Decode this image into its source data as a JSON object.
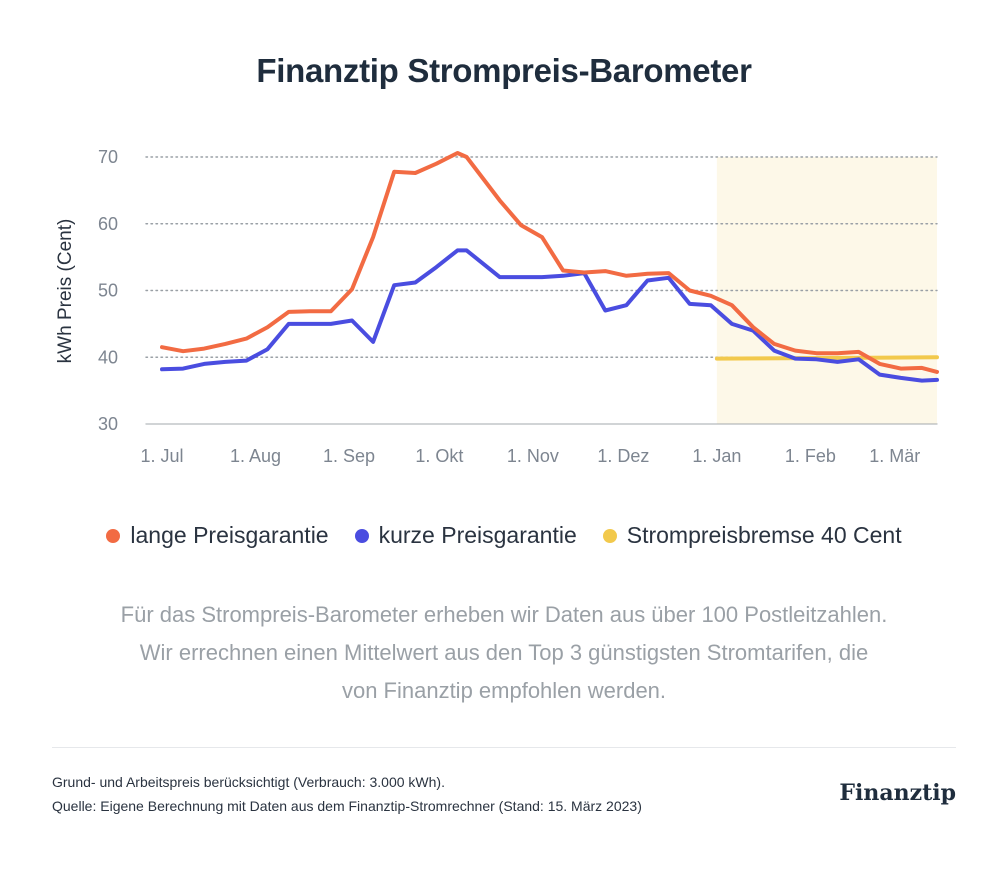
{
  "title": "Finanztip Strompreis-Barometer",
  "chart_data": {
    "type": "line",
    "ylabel": "kWh Preis (Cent)",
    "xlabel": "",
    "ylim": [
      30,
      70
    ],
    "yticks": [
      30,
      40,
      50,
      60,
      70
    ],
    "x_ticks": [
      "1. Jul",
      "1. Aug",
      "1. Sep",
      "1. Okt",
      "1. Nov",
      "1. Dez",
      "1. Jan",
      "1. Feb",
      "1. Mär"
    ],
    "x_days": [
      0,
      31,
      62,
      92,
      123,
      153,
      184,
      215,
      243
    ],
    "x_domain": [
      0,
      257
    ],
    "grid": "horizontal-dotted",
    "legend_position": "bottom",
    "highlight_region": [
      184,
      257
    ],
    "series": [
      {
        "name": "lange Preisgarantie",
        "color": "#f26b43",
        "x": [
          0,
          7,
          14,
          21,
          28,
          35,
          42,
          49,
          56,
          63,
          70,
          77,
          84,
          91,
          98,
          101,
          112,
          119,
          126,
          133,
          140,
          147,
          154,
          161,
          168,
          175,
          182,
          189,
          196,
          203,
          210,
          217,
          224,
          231,
          238,
          245,
          252,
          257
        ],
        "y": [
          41.5,
          40.9,
          41.3,
          42.0,
          42.8,
          44.5,
          46.8,
          46.9,
          46.9,
          50.2,
          58.0,
          67.8,
          67.6,
          69.0,
          70.6,
          70.0,
          63.5,
          59.8,
          58.0,
          53.0,
          52.7,
          52.9,
          52.2,
          52.5,
          52.6,
          50.0,
          49.2,
          47.8,
          44.5,
          42.0,
          41.0,
          40.6,
          40.6,
          40.8,
          39.0,
          38.3,
          38.4,
          37.8
        ]
      },
      {
        "name": "kurze Preisgarantie",
        "color": "#4a4de0",
        "x": [
          0,
          7,
          14,
          21,
          28,
          35,
          42,
          49,
          56,
          63,
          70,
          77,
          84,
          91,
          98,
          101,
          112,
          119,
          126,
          133,
          140,
          147,
          154,
          161,
          168,
          175,
          182,
          189,
          196,
          203,
          210,
          217,
          224,
          231,
          238,
          245,
          252,
          257
        ],
        "y": [
          38.2,
          38.3,
          39.0,
          39.3,
          39.5,
          41.2,
          45.0,
          45.0,
          45.0,
          45.5,
          42.3,
          50.8,
          51.2,
          53.5,
          56.0,
          56.0,
          52.0,
          52.0,
          52.0,
          52.2,
          52.6,
          47.0,
          47.8,
          51.5,
          51.9,
          48.0,
          47.8,
          45.0,
          44.0,
          41.0,
          39.8,
          39.7,
          39.3,
          39.7,
          37.4,
          36.9,
          36.5,
          36.6
        ]
      },
      {
        "name": "Strompreisbremse 40 Cent",
        "color": "#f2c94c",
        "x": [
          184,
          257
        ],
        "y": [
          39.8,
          40.0
        ]
      }
    ]
  },
  "legend": [
    {
      "label": "lange Preisgarantie",
      "color": "#f26b43"
    },
    {
      "label": "kurze Preisgarantie",
      "color": "#4a4de0"
    },
    {
      "label": "Strompreisbremse 40 Cent",
      "color": "#f2c94c"
    }
  ],
  "description": "Für das Strompreis-Barometer erheben wir Daten aus über 100 Postleitzahlen. Wir errechnen einen Mittelwert aus den Top 3 günstigsten Stromtarifen, die von Finanztip empfohlen werden.",
  "footer": {
    "line1": "Grund- und Arbeitspreis berücksichtigt (Verbrauch: 3.000 kWh).",
    "line2": "Quelle: Eigene Berechnung mit Daten aus dem Finanztip-Stromrechner (Stand: 15. März 2023)",
    "brand": "Finanztip"
  }
}
